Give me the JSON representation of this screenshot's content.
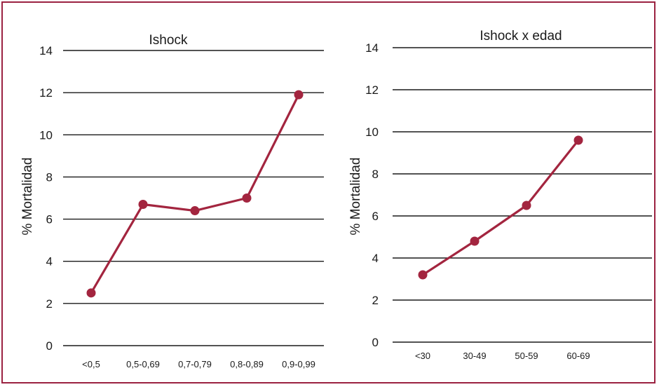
{
  "colors": {
    "frame": "#9b2241",
    "series": "#a3253f"
  },
  "chart_data": [
    {
      "type": "line",
      "title": "Ishock",
      "ylabel": "% Mortalidad",
      "xlabel": "",
      "categories": [
        "<0,5",
        "0,5-0,69",
        "0,7-0,79",
        "0,8-0,89",
        "0,9-0,99"
      ],
      "series": [
        {
          "values": [
            2.5,
            6.7,
            6.4,
            7.0,
            11.9
          ]
        }
      ],
      "ylim": [
        0,
        14
      ],
      "yticks": [
        "0",
        "2",
        "4",
        "6",
        "8",
        "10",
        "12",
        "14"
      ],
      "grid": true
    },
    {
      "type": "line",
      "title": "Ishock x edad",
      "ylabel": "% Mortalidad",
      "xlabel": "",
      "categories": [
        "<30",
        "30-49",
        "50-59",
        "60-69"
      ],
      "series": [
        {
          "values": [
            3.2,
            4.8,
            6.5,
            9.6
          ]
        }
      ],
      "ylim": [
        0,
        14
      ],
      "yticks": [
        "0",
        "2",
        "4",
        "6",
        "8",
        "10",
        "12",
        "14"
      ],
      "grid": true
    }
  ]
}
